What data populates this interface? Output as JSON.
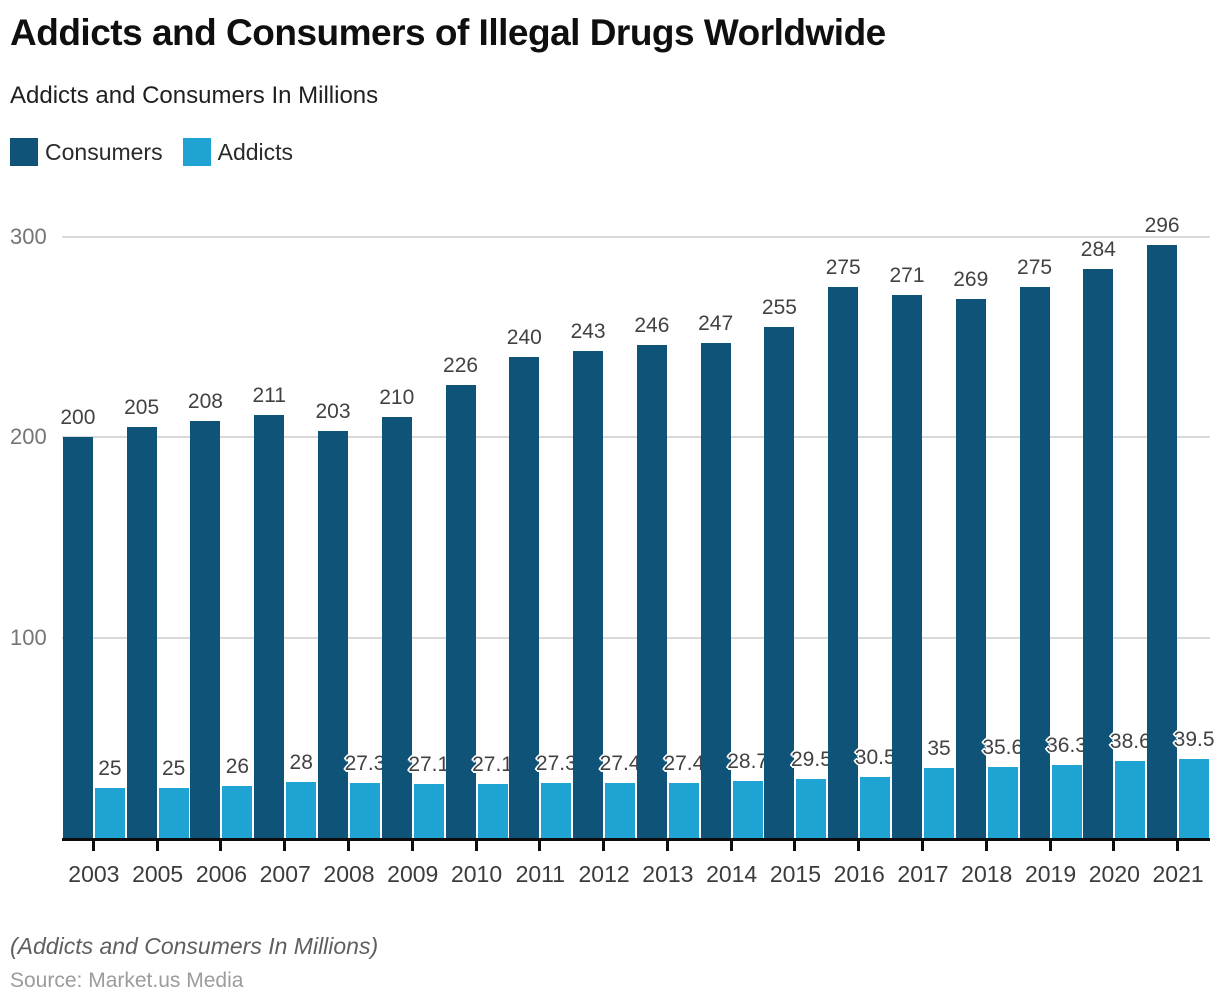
{
  "header": {
    "title": "Addicts and Consumers of Illegal Drugs Worldwide",
    "subtitle": "Addicts and Consumers In Millions"
  },
  "legend": {
    "items": [
      {
        "label": "Consumers",
        "color": "#0f5478"
      },
      {
        "label": "Addicts",
        "color": "#1fa3d2"
      }
    ]
  },
  "footer": {
    "note": "(Addicts and Consumers In Millions)",
    "source": "Source: Market.us Media"
  },
  "colors": {
    "consumers": "#0f5478",
    "addicts": "#1fa3d2",
    "gridline": "#d9d9d9",
    "axis": "#0d0d0d",
    "value_label": "#424242",
    "ytick_label": "#757575",
    "xtick_label": "#3b3b3b"
  },
  "chart_data": {
    "type": "bar",
    "title": "Addicts and Consumers of Illegal Drugs Worldwide",
    "subtitle": "Addicts and Consumers In Millions",
    "categories": [
      "2003",
      "2005",
      "2006",
      "2007",
      "2008",
      "2009",
      "2010",
      "2011",
      "2012",
      "2013",
      "2014",
      "2015",
      "2016",
      "2017",
      "2018",
      "2019",
      "2020",
      "2021"
    ],
    "series": [
      {
        "name": "Consumers",
        "color": "#0f5478",
        "values": [
          200,
          205,
          208,
          211,
          203,
          210,
          226,
          240,
          243,
          246,
          247,
          255,
          275,
          271,
          269,
          275,
          284,
          296
        ]
      },
      {
        "name": "Addicts",
        "color": "#1fa3d2",
        "values": [
          25,
          25,
          26,
          28,
          27.3,
          27.1,
          27.1,
          27.3,
          27.4,
          27.4,
          28.7,
          29.5,
          30.5,
          35,
          35.6,
          36.3,
          38.6,
          39.5
        ]
      }
    ],
    "xlabel": "",
    "ylabel": "",
    "ylim": [
      0,
      300
    ],
    "yticks": [
      100,
      200,
      300
    ],
    "grid": true,
    "value_labels": true,
    "legend_position": "top-left"
  }
}
